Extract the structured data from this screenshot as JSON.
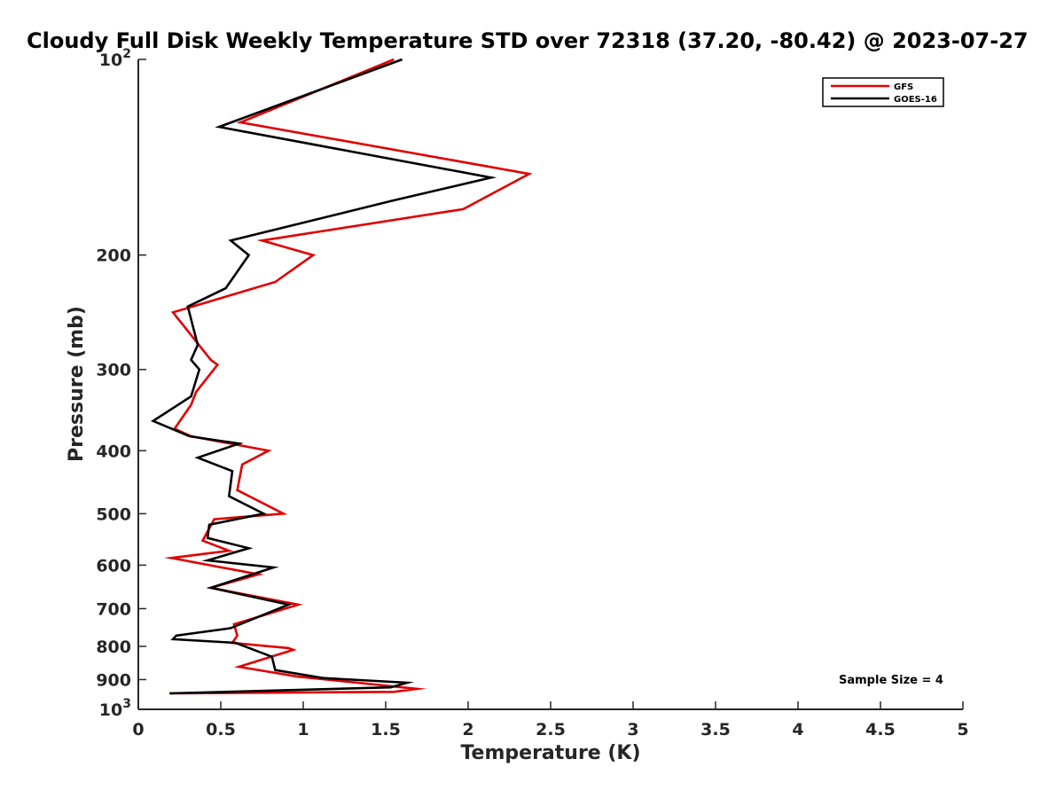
{
  "chart_data": {
    "type": "line",
    "title": "Cloudy Full Disk Weekly Temperature STD over 72318 (37.20, -80.42) @ 2023-07-27",
    "xlabel": "Temperature (K)",
    "ylabel": "Pressure (mb)",
    "xlim": [
      0,
      5
    ],
    "ylim": [
      100,
      1000
    ],
    "yscale": "log",
    "y_reversed": true,
    "x_ticks": [
      0,
      0.5,
      1,
      1.5,
      2,
      2.5,
      3,
      3.5,
      4,
      4.5,
      5
    ],
    "x_tick_labels": [
      "0",
      "0.5",
      "1",
      "1.5",
      "2",
      "2.5",
      "3",
      "3.5",
      "4",
      "4.5",
      "5"
    ],
    "y_ticks": [
      100,
      200,
      300,
      400,
      500,
      600,
      700,
      800,
      900,
      1000
    ],
    "y_tick_labels": [
      {
        "base": "10",
        "exp": "2"
      },
      {
        "base": "200",
        "exp": ""
      },
      {
        "base": "300",
        "exp": ""
      },
      {
        "base": "400",
        "exp": ""
      },
      {
        "base": "500",
        "exp": ""
      },
      {
        "base": "600",
        "exp": ""
      },
      {
        "base": "700",
        "exp": ""
      },
      {
        "base": "800",
        "exp": ""
      },
      {
        "base": "900",
        "exp": ""
      },
      {
        "base": "10",
        "exp": "3"
      }
    ],
    "legend_position": "top-right",
    "series": [
      {
        "name": "GFS",
        "color": "#e00000",
        "points": [
          [
            1.55,
            100
          ],
          [
            0.62,
            125
          ],
          [
            2.37,
            150
          ],
          [
            1.97,
            170
          ],
          [
            0.75,
            190
          ],
          [
            1.06,
            200
          ],
          [
            0.83,
            220
          ],
          [
            0.21,
            245
          ],
          [
            0.44,
            290
          ],
          [
            0.48,
            295
          ],
          [
            0.35,
            325
          ],
          [
            0.32,
            340
          ],
          [
            0.22,
            370
          ],
          [
            0.32,
            380
          ],
          [
            0.79,
            400
          ],
          [
            0.63,
            420
          ],
          [
            0.6,
            460
          ],
          [
            0.88,
            500
          ],
          [
            0.46,
            510
          ],
          [
            0.39,
            550
          ],
          [
            0.55,
            570
          ],
          [
            0.2,
            585
          ],
          [
            0.73,
            620
          ],
          [
            0.44,
            650
          ],
          [
            0.97,
            690
          ],
          [
            0.58,
            740
          ],
          [
            0.6,
            770
          ],
          [
            0.57,
            790
          ],
          [
            0.91,
            805
          ],
          [
            0.94,
            810
          ],
          [
            0.61,
            860
          ],
          [
            0.96,
            890
          ],
          [
            1.69,
            930
          ],
          [
            1.55,
            940
          ],
          [
            0.19,
            945
          ]
        ]
      },
      {
        "name": "GOES-16",
        "color": "#000000",
        "points": [
          [
            1.6,
            100
          ],
          [
            0.49,
            127
          ],
          [
            2.14,
            152
          ],
          [
            1.54,
            165
          ],
          [
            0.56,
            190
          ],
          [
            0.67,
            200
          ],
          [
            0.53,
            225
          ],
          [
            0.3,
            240
          ],
          [
            0.36,
            275
          ],
          [
            0.32,
            290
          ],
          [
            0.37,
            300
          ],
          [
            0.32,
            330
          ],
          [
            0.09,
            360
          ],
          [
            0.31,
            380
          ],
          [
            0.61,
            390
          ],
          [
            0.36,
            410
          ],
          [
            0.57,
            430
          ],
          [
            0.55,
            470
          ],
          [
            0.76,
            500
          ],
          [
            0.43,
            520
          ],
          [
            0.42,
            545
          ],
          [
            0.67,
            565
          ],
          [
            0.42,
            590
          ],
          [
            0.82,
            605
          ],
          [
            0.44,
            650
          ],
          [
            0.91,
            690
          ],
          [
            0.56,
            750
          ],
          [
            0.48,
            755
          ],
          [
            0.23,
            770
          ],
          [
            0.21,
            780
          ],
          [
            0.59,
            790
          ],
          [
            0.81,
            830
          ],
          [
            0.83,
            870
          ],
          [
            1.12,
            895
          ],
          [
            1.63,
            910
          ],
          [
            1.53,
            925
          ],
          [
            0.19,
            945
          ]
        ]
      }
    ],
    "annotation": "Sample Size = 4"
  }
}
